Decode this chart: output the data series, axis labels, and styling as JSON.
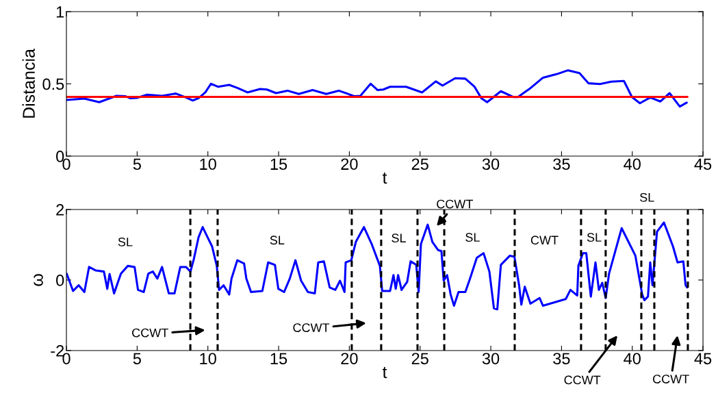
{
  "chart_data": [
    {
      "type": "line",
      "xlabel": "t",
      "ylabel": "Distancia",
      "xlim": [
        0,
        45
      ],
      "ylim": [
        0,
        1
      ],
      "xticks": [
        0,
        5,
        10,
        15,
        20,
        25,
        30,
        35,
        40,
        45
      ],
      "yticks": [
        0,
        0.5,
        1
      ],
      "grid": false,
      "legend": false,
      "series": [
        {
          "color": "#0000ff",
          "x": [
            0.02,
            1.27,
            2.32,
            3.53,
            4.18,
            4.5,
            4.98,
            5.71,
            6.76,
            7.73,
            8.37,
            8.93,
            9.34,
            9.82,
            10.22,
            10.71,
            11.51,
            12.08,
            12.8,
            13.69,
            14.17,
            14.82,
            15.63,
            16.43,
            17.4,
            18.37,
            19.25,
            20.38,
            20.78,
            21.51,
            22.0,
            22.4,
            22.88,
            24.01,
            25.14,
            26.11,
            26.59,
            27.48,
            28.2,
            28.85,
            29.33,
            29.74,
            30.71,
            31.59,
            31.91,
            32.72,
            33.69,
            34.65,
            35.46,
            36.27,
            36.91,
            37.72,
            38.52,
            39.41,
            39.98,
            40.54,
            41.27,
            41.99,
            42.64,
            43.36,
            43.85
          ],
          "values": [
            0.389,
            0.398,
            0.373,
            0.417,
            0.414,
            0.401,
            0.403,
            0.425,
            0.417,
            0.433,
            0.409,
            0.385,
            0.401,
            0.441,
            0.501,
            0.48,
            0.493,
            0.472,
            0.441,
            0.464,
            0.461,
            0.436,
            0.453,
            0.43,
            0.457,
            0.43,
            0.453,
            0.414,
            0.417,
            0.501,
            0.457,
            0.461,
            0.48,
            0.48,
            0.441,
            0.517,
            0.488,
            0.539,
            0.536,
            0.48,
            0.401,
            0.373,
            0.449,
            0.409,
            0.409,
            0.464,
            0.543,
            0.567,
            0.594,
            0.575,
            0.504,
            0.499,
            0.515,
            0.52,
            0.409,
            0.366,
            0.406,
            0.378,
            0.436,
            0.343,
            0.37
          ]
        },
        {
          "color": "#ff0000",
          "x": [
            0,
            43.9
          ],
          "values": [
            0.41,
            0.41
          ]
        }
      ]
    },
    {
      "type": "line",
      "xlabel": "t",
      "ylabel": "ω",
      "xlim": [
        0,
        45
      ],
      "ylim": [
        -2,
        2
      ],
      "xticks": [
        0,
        5,
        10,
        15,
        20,
        25,
        30,
        35,
        40,
        45
      ],
      "yticks": [
        -2,
        0,
        2
      ],
      "grid": false,
      "legend": false,
      "series": [
        {
          "color": "#0000ff",
          "x": [
            0.02,
            0.47,
            0.87,
            1.27,
            1.6,
            2.08,
            2.65,
            2.89,
            3.05,
            3.37,
            3.85,
            4.34,
            4.82,
            5.06,
            5.47,
            5.79,
            6.11,
            6.43,
            6.76,
            7.24,
            7.64,
            8.05,
            8.45,
            8.77,
            9.01,
            9.34,
            9.63,
            9.98,
            10.3,
            10.63,
            10.79,
            11.11,
            11.51,
            11.67,
            12.08,
            12.56,
            12.72,
            13.05,
            13.85,
            14.26,
            14.74,
            14.98,
            15.39,
            15.79,
            16.19,
            16.59,
            17.07,
            17.56,
            17.8,
            18.2,
            18.61,
            19.01,
            19.34,
            19.66,
            19.74,
            20.14,
            20.46,
            21.03,
            21.59,
            22.16,
            22.32,
            22.72,
            22.88,
            23.12,
            23.28,
            23.45,
            23.69,
            24.09,
            24.33,
            24.73,
            24.9,
            25.06,
            25.54,
            25.87,
            26.27,
            26.51,
            26.67,
            26.91,
            27.16,
            27.4,
            27.72,
            28.2,
            28.53,
            29.01,
            29.49,
            29.9,
            30.22,
            30.46,
            30.71,
            31.35,
            31.67,
            32.0,
            32.16,
            32.4,
            32.8,
            33.45,
            33.69,
            35.3,
            35.63,
            36.11,
            36.19,
            36.51,
            36.75,
            37.07,
            37.4,
            37.64,
            37.88,
            38.12,
            38.36,
            39.25,
            40.22,
            40.7,
            40.86,
            41.11,
            41.27,
            41.43,
            41.75,
            42.24,
            42.88,
            43.2,
            43.61,
            43.77,
            43.88
          ],
          "values": [
            0.18,
            -0.31,
            -0.15,
            -0.34,
            0.37,
            0.27,
            0.24,
            -0.25,
            0.17,
            -0.38,
            0.18,
            0.4,
            0.37,
            -0.28,
            -0.34,
            0.18,
            0.24,
            0.04,
            0.37,
            -0.38,
            -0.38,
            0.37,
            0.37,
            0.24,
            0.6,
            1.21,
            1.5,
            1.21,
            0.95,
            0.4,
            -0.28,
            -0.15,
            -0.41,
            0.04,
            0.56,
            0.47,
            0.04,
            -0.34,
            -0.31,
            0.5,
            0.43,
            -0.25,
            -0.34,
            0.04,
            0.56,
            -0.02,
            -0.34,
            -0.38,
            0.5,
            0.53,
            -0.21,
            -0.28,
            -0.02,
            -0.34,
            0.5,
            0.56,
            1.08,
            1.5,
            1.01,
            0.4,
            -0.31,
            -0.31,
            -0.31,
            0.14,
            -0.25,
            0.14,
            -0.28,
            -0.05,
            0.53,
            0.43,
            -0.34,
            1.02,
            1.57,
            1.08,
            0.85,
            0.82,
            -0.02,
            0.14,
            -0.41,
            -0.73,
            -0.34,
            -0.34,
            0.04,
            0.63,
            0.76,
            0.24,
            -0.8,
            -0.83,
            0.43,
            0.69,
            0.66,
            -0.15,
            -0.7,
            -0.19,
            -0.67,
            -0.51,
            -0.73,
            -0.54,
            -0.28,
            -0.44,
            0.4,
            0.76,
            0.76,
            -0.47,
            0.5,
            -0.28,
            -0.08,
            -0.51,
            0.18,
            1.47,
            0.69,
            -0.41,
            -0.57,
            -0.47,
            0.5,
            -0.15,
            1.37,
            1.63,
            0.95,
            0.5,
            0.53,
            -0.15,
            -0.21
          ]
        }
      ],
      "ref_lines": [
        {
          "axis": "x",
          "value": 8.76,
          "color": "#000000",
          "line_style": "dashed"
        },
        {
          "axis": "x",
          "value": 10.69,
          "color": "#000000",
          "line_style": "dashed"
        },
        {
          "axis": "x",
          "value": 20.17,
          "color": "#000000",
          "line_style": "dashed"
        },
        {
          "axis": "x",
          "value": 22.25,
          "color": "#000000",
          "line_style": "dashed"
        },
        {
          "axis": "x",
          "value": 24.82,
          "color": "#000000",
          "line_style": "dashed"
        },
        {
          "axis": "x",
          "value": 26.71,
          "color": "#000000",
          "line_style": "dashed"
        },
        {
          "axis": "x",
          "value": 31.69,
          "color": "#000000",
          "line_style": "dashed"
        },
        {
          "axis": "x",
          "value": 36.38,
          "color": "#000000",
          "line_style": "dashed"
        },
        {
          "axis": "x",
          "value": 38.12,
          "color": "#000000",
          "line_style": "dashed"
        },
        {
          "axis": "x",
          "value": 40.64,
          "color": "#000000",
          "line_style": "dashed"
        },
        {
          "axis": "x",
          "value": 41.56,
          "color": "#000000",
          "line_style": "dashed"
        },
        {
          "axis": "x",
          "value": 43.93,
          "color": "#000000",
          "line_style": "dashed"
        }
      ],
      "annotations": [
        "SL",
        "SL",
        "SL",
        "SL",
        "CWT",
        "SL",
        "SL",
        "CCWT",
        "CCWT",
        "CCWT",
        "CCWT",
        "CCWT"
      ]
    }
  ]
}
